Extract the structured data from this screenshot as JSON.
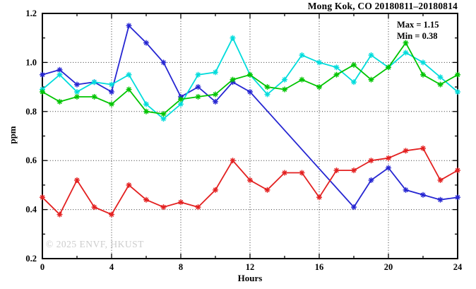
{
  "header": {
    "title": "Mong Kok, CO 20180811–20180814"
  },
  "annotations": {
    "max_label": "Max = 1.15",
    "min_label": "Min = 0.38"
  },
  "watermark": "© 2025 ENVF, HKUST",
  "chart_data": {
    "type": "line",
    "title": "Mong Kok, CO 20180811–20180814",
    "xlabel": "Hours",
    "ylabel": "ppm",
    "xlim": [
      0,
      24
    ],
    "ylim": [
      0.2,
      1.2
    ],
    "grid": "dotted at major ticks",
    "legend": "none",
    "marker": "asterisk",
    "x_major_ticks": [
      0,
      4,
      8,
      12,
      16,
      20,
      24
    ],
    "x_tick_labels": [
      "0",
      "4",
      "8",
      "12",
      "16",
      "20",
      "24"
    ],
    "x_minor_ticks": [
      2,
      6,
      10,
      14,
      18,
      22
    ],
    "y_major_ticks": [
      0.2,
      0.4,
      0.6,
      0.8,
      1.0,
      1.2
    ],
    "y_tick_labels": [
      "0.2",
      "0.4",
      "0.6",
      "0.8",
      "1.0",
      "1.2"
    ],
    "y_minor_ticks": [
      0.3,
      0.5,
      0.7,
      0.9,
      1.1
    ],
    "x": [
      0,
      1,
      2,
      3,
      4,
      5,
      6,
      7,
      8,
      9,
      10,
      11,
      12,
      13,
      14,
      15,
      16,
      17,
      18,
      19,
      20,
      21,
      22,
      23,
      24
    ],
    "series": [
      {
        "name": "series-blue",
        "color": "#2626d2",
        "values": [
          0.95,
          0.97,
          0.91,
          0.92,
          0.88,
          1.15,
          1.08,
          1.0,
          0.86,
          0.9,
          0.84,
          0.92,
          0.88,
          null,
          null,
          null,
          null,
          null,
          0.41,
          0.52,
          0.57,
          0.48,
          0.46,
          0.44,
          0.45
        ]
      },
      {
        "name": "series-cyan",
        "color": "#00dcdc",
        "values": [
          0.89,
          0.95,
          0.88,
          0.92,
          0.91,
          0.95,
          0.83,
          0.77,
          0.83,
          0.95,
          0.96,
          1.1,
          0.95,
          0.87,
          0.93,
          1.03,
          1.0,
          0.98,
          0.92,
          1.03,
          0.98,
          1.04,
          1.0,
          0.94,
          0.88
        ]
      },
      {
        "name": "series-green",
        "color": "#00c400",
        "values": [
          0.88,
          0.84,
          0.86,
          0.86,
          0.83,
          0.89,
          0.8,
          0.79,
          0.85,
          0.86,
          0.87,
          0.93,
          0.95,
          0.9,
          0.89,
          0.93,
          0.9,
          0.95,
          0.99,
          0.93,
          0.98,
          1.08,
          0.95,
          0.91,
          0.95
        ]
      },
      {
        "name": "series-red",
        "color": "#e32020",
        "values": [
          0.45,
          0.38,
          0.52,
          0.41,
          0.38,
          0.5,
          0.44,
          0.41,
          0.43,
          0.41,
          0.48,
          0.6,
          0.52,
          0.48,
          0.55,
          0.55,
          0.45,
          0.56,
          0.56,
          0.6,
          0.61,
          0.64,
          0.65,
          0.52,
          0.56
        ]
      }
    ],
    "stats": {
      "max": 1.15,
      "min": 0.38
    }
  }
}
